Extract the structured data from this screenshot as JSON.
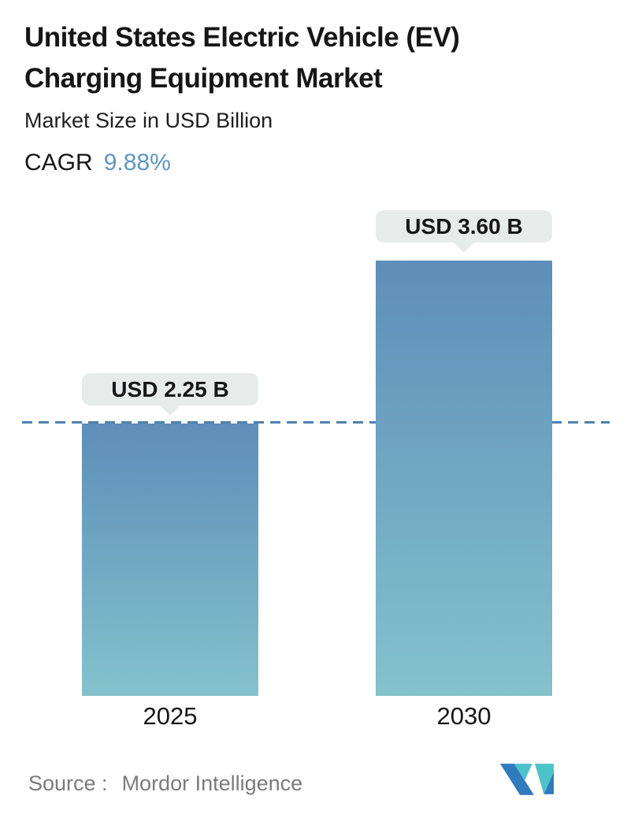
{
  "header": {
    "title_line1": "United States Electric Vehicle (EV)",
    "title_line2": "Charging Equipment Market",
    "subtitle": "Market Size in USD Billion",
    "cagr_label": "CAGR",
    "cagr_value": "9.88%"
  },
  "chart_data": {
    "type": "bar",
    "title": "United States Electric Vehicle (EV) Charging Equipment Market",
    "subtitle": "Market Size in USD Billion",
    "cagr": "9.88%",
    "categories": [
      "2025",
      "2030"
    ],
    "values": [
      2.25,
      3.6
    ],
    "value_labels": [
      "USD 2.25 B",
      "USD 3.60 B"
    ],
    "unit": "USD Billion",
    "baseline_reference": {
      "value": 2.25,
      "style": "dashed"
    },
    "legend": false,
    "gridlines": false,
    "axes_ticks_visible": false
  },
  "footer": {
    "source_label": "Source :",
    "source_value": "Mordor Intelligence",
    "logo": "mordor-intelligence-logo"
  },
  "colors": {
    "text_dark": "#161616",
    "accent_blue": "#5e95c5",
    "bar_top": "#5d8eb9",
    "bar_bottom": "#84c2cc",
    "dash_color": "#4e81af",
    "tooltip_bg": "#e7eceb",
    "source_gray": "#7b7b7b",
    "logo_blue": "#2e7bbf",
    "logo_teal": "#4cc3c9"
  }
}
